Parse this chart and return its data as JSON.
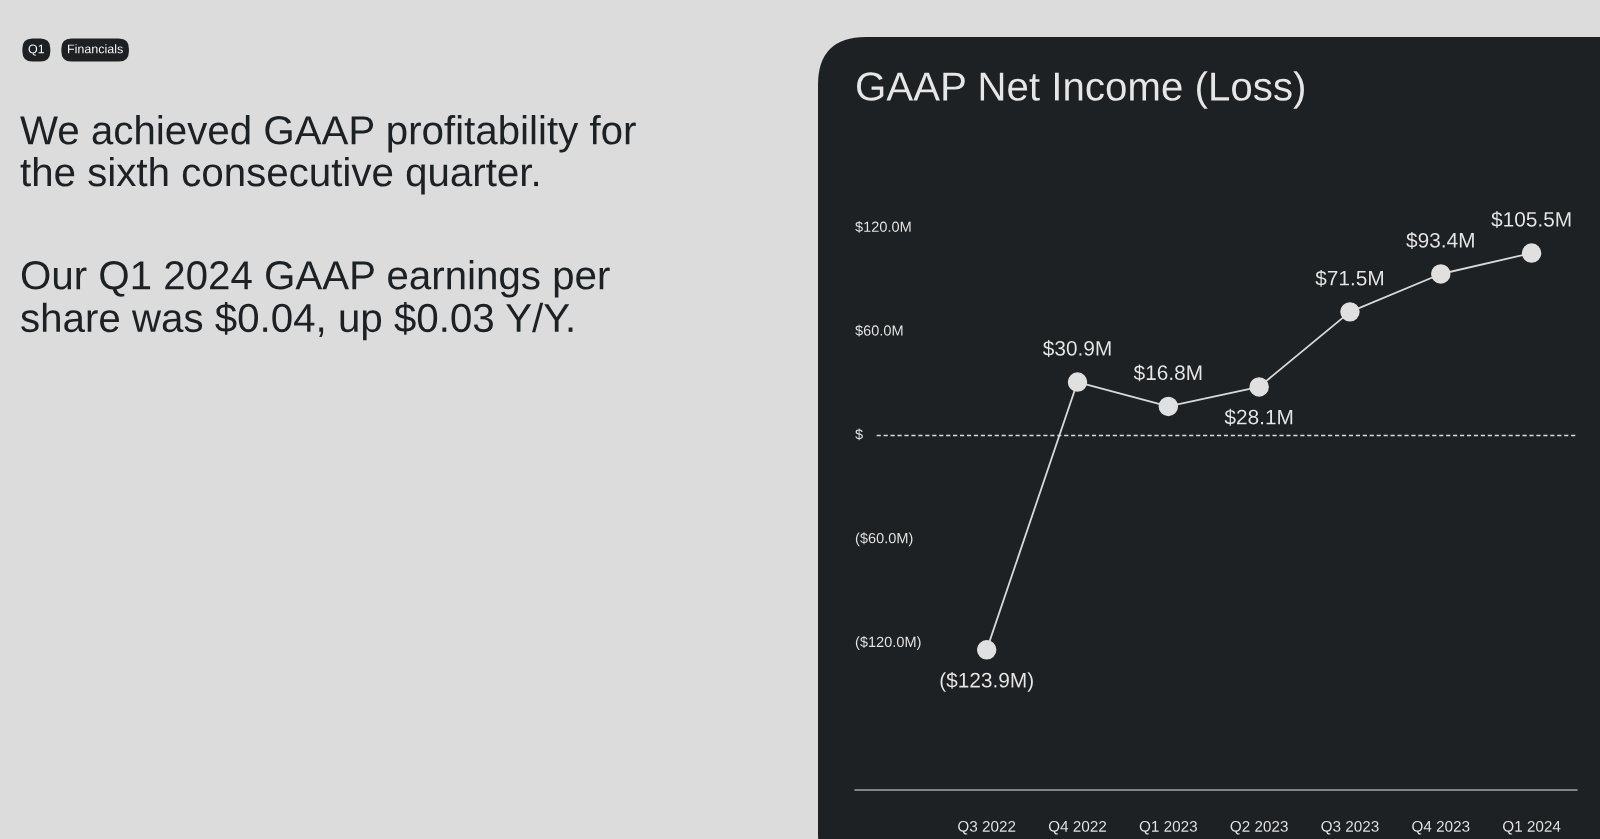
{
  "chart_data": {
    "type": "line",
    "title": "GAAP Net Income (Loss)",
    "categories": [
      "Q3 2022",
      "Q4 2022",
      "Q1 2023",
      "Q2 2023",
      "Q3 2023",
      "Q4 2023",
      "Q1 2024"
    ],
    "series": [
      {
        "color": "#d9d9d9",
        "values": [
          -123.9,
          30.9,
          16.8,
          28.1,
          71.5,
          93.4,
          105.5
        ],
        "value_labels": [
          "($123.9M)",
          "$30.9M",
          "$16.8M",
          "$28.1M",
          "$71.5M",
          "$93.4M",
          "$105.5M"
        ]
      }
    ],
    "ylim": [
      -205,
      120
    ],
    "yticks": [
      {
        "value": 120,
        "label": "$120.0M"
      },
      {
        "value": 60,
        "label": "$60.0M"
      },
      {
        "value": 0,
        "label": "$"
      },
      {
        "value": -60,
        "label": "($60.0M)"
      },
      {
        "value": -120,
        "label": "($120.0M)"
      }
    ],
    "ref_lines": [
      {
        "axis": "y",
        "value": 0,
        "color": "#d9d9d9",
        "line_style": "dashed"
      }
    ],
    "marker": "circle",
    "line_style": "solid",
    "grid": false,
    "legend": false,
    "annotations": [
      "Q1",
      "Financials",
      "We achieved GAAP profitability for\nthe sixth consecutive quarter.",
      "Our Q1 2024 GAAP earnings per\nshare was $0.04, up $0.03 Y/Y."
    ]
  }
}
